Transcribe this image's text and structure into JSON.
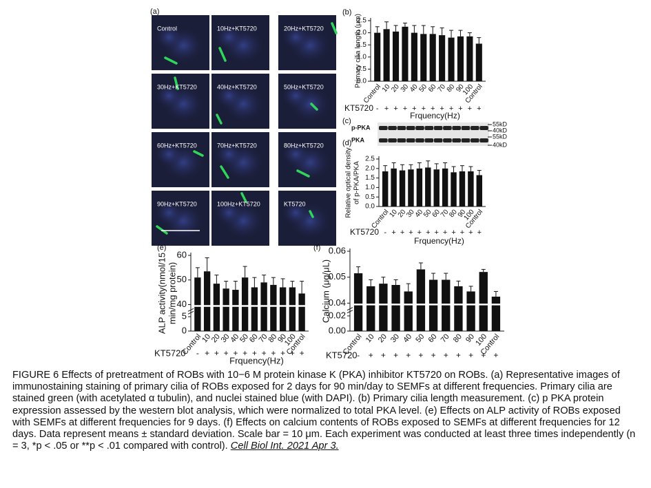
{
  "panel_a": {
    "label": "(a)",
    "images": [
      "Control",
      "10Hz+KT5720",
      "20Hz+KT5720",
      "30Hz+KT5720",
      "40Hz+KT5720",
      "50Hz+KT5720",
      "60Hz+KT5720",
      "70Hz+KT5720",
      "80Hz+KT5720",
      "90Hz+KT5720",
      "100Hz+KT5720",
      "KT5720"
    ]
  },
  "western_blot": {
    "label": "(c)",
    "rows": [
      "p-PKA",
      "PKA"
    ],
    "markers": [
      "55kD",
      "40kD",
      "55kD",
      "40kD"
    ]
  },
  "chart_data": [
    {
      "type": "bar",
      "panel": "(b)",
      "ylabel": [
        "Primary cilia length (μm)"
      ],
      "categories": [
        "Control",
        "10",
        "20",
        "30",
        "40",
        "50",
        "60",
        "70",
        "80",
        "90",
        "100",
        "Control"
      ],
      "values": [
        2.0,
        2.15,
        2.05,
        2.25,
        2.0,
        1.95,
        1.95,
        1.9,
        1.8,
        1.85,
        1.85,
        1.55
      ],
      "errors": [
        0.25,
        0.3,
        0.25,
        0.15,
        0.3,
        0.35,
        0.3,
        0.3,
        0.3,
        0.25,
        0.15,
        0.25
      ],
      "color": "#111111",
      "ylim": [
        0,
        2.5
      ],
      "yticks": [
        {
          "value": 0,
          "label": "0.0"
        },
        0.5,
        {
          "value": 1,
          "label": "1.0"
        },
        1.5,
        {
          "value": 2,
          "label": "2.0"
        },
        2.5
      ],
      "treatment": {
        "label": "KT5720",
        "signs": [
          "-",
          "+",
          "+",
          "+",
          "+",
          "+",
          "+",
          "+",
          "+",
          "+",
          "+",
          "+"
        ]
      },
      "xlabel": "Frquency(Hz)"
    },
    {
      "type": "bar",
      "panel": "(d)",
      "ylabel": [
        "Relative optical density",
        "of p-PKA/PKA"
      ],
      "categories": [
        "Control",
        "10",
        "20",
        "30",
        "40",
        "50",
        "60",
        "70",
        "80",
        "90",
        "100",
        "Control"
      ],
      "values": [
        1.85,
        2.0,
        1.9,
        1.95,
        2.0,
        2.05,
        1.95,
        2.0,
        1.8,
        1.85,
        1.85,
        1.65
      ],
      "errors": [
        0.3,
        0.3,
        0.3,
        0.25,
        0.3,
        0.35,
        0.3,
        0.3,
        0.3,
        0.3,
        0.25,
        0.25
      ],
      "color": "#111111",
      "ylim": [
        0,
        2.5
      ],
      "yticks": [
        {
          "value": 0,
          "label": "0.0"
        },
        0.5,
        {
          "value": 1,
          "label": "1.0"
        },
        1.5,
        {
          "value": 2,
          "label": "2.0"
        },
        2.5
      ],
      "treatment": {
        "label": "KT5720",
        "signs": [
          "-",
          "+",
          "+",
          "+",
          "+",
          "+",
          "+",
          "+",
          "+",
          "+",
          "+",
          "+"
        ]
      },
      "xlabel": "Frquency(Hz)"
    },
    {
      "type": "bar",
      "panel": "(e)",
      "ylabel": [
        "ALP activity(nmol/15",
        "min/mg protein)"
      ],
      "categories": [
        "Control",
        "10",
        "20",
        "30",
        "40",
        "50",
        "60",
        "70",
        "80",
        "90",
        "100",
        "Control"
      ],
      "values": [
        51,
        53.5,
        48.5,
        46.5,
        46,
        51,
        47,
        49,
        48,
        47,
        47,
        44.5
      ],
      "errors": [
        4,
        5.5,
        3.5,
        3,
        3.5,
        4.5,
        4,
        3,
        3,
        3.5,
        2.5,
        5
      ],
      "color": "#111111",
      "ylim": [
        0,
        60
      ],
      "yticks": [
        0,
        5,
        40,
        50,
        60
      ],
      "axis_break": true,
      "treatment": {
        "label": "KT5720",
        "signs": [
          "-",
          "+",
          "+",
          "+",
          "+",
          "+",
          "+",
          "+",
          "+",
          "+",
          "+",
          "+"
        ]
      },
      "xlabel": "Frquency(Hz)"
    },
    {
      "type": "bar",
      "panel": "(f)",
      "ylabel": [
        "Calcium (μg/μL)"
      ],
      "categories": [
        "Control",
        "10",
        "20",
        "30",
        "40",
        "50",
        "60",
        "70",
        "80",
        "90",
        "100",
        "Control"
      ],
      "values": [
        0.0515,
        0.0465,
        0.0475,
        0.047,
        0.0445,
        0.053,
        0.049,
        0.049,
        0.0465,
        0.0445,
        0.052,
        0.0425
      ],
      "errors": [
        0.0025,
        0.0025,
        0.0025,
        0.002,
        0.003,
        0.0025,
        0.0025,
        0.0025,
        0.002,
        0.002,
        0.001,
        0.002
      ],
      "color": "#111111",
      "ylim": [
        0,
        0.06
      ],
      "yticks": [
        {
          "value": 0,
          "label": "0.00"
        },
        {
          "value": 0.02,
          "label": "0.02"
        },
        {
          "value": 0.04,
          "label": "0.04"
        },
        {
          "value": 0.05,
          "label": "0.05"
        },
        {
          "value": 0.06,
          "label": "0.06"
        }
      ],
      "axis_break": true,
      "treatment": {
        "label": "KT5720",
        "signs": [
          "-",
          "+",
          "+",
          "+",
          "+",
          "+",
          "+",
          "+",
          "+",
          "+",
          "+",
          "+"
        ]
      }
    }
  ],
  "caption": {
    "text": "FIGURE 6 Effects of pretreatment of ROBs with 10−6 M protein kinase K (PKA) inhibitor KT5720 on ROBs. (a) Representative images of immunostaining staining of primary cilia of ROBs exposed for 2 days for 90 min/day to SEMFs at different frequencies. Primary cilia are stained green (with acetylated α tubulin), and nuclei stained blue (with DAPI). (b) Primary cilia length measurement. (c) p PKA protein expression assessed by the western blot analysis, which were normalized to total PKA level. (e) Effects on ALP activity of ROBs exposed with SEMFs at different frequencies for 9 days. (f) Effects on calcium contents of ROBs exposed to SEMFs at different frequencies for 12 days. Data represent means ± standard deviation. Scale bar = 10 μm. Each experiment was conducted at least three times independently (n = 3, *p < .05 or **p < .01 compared with control).",
    "citation": "Cell Biol Int. 2021 Apr 3."
  }
}
